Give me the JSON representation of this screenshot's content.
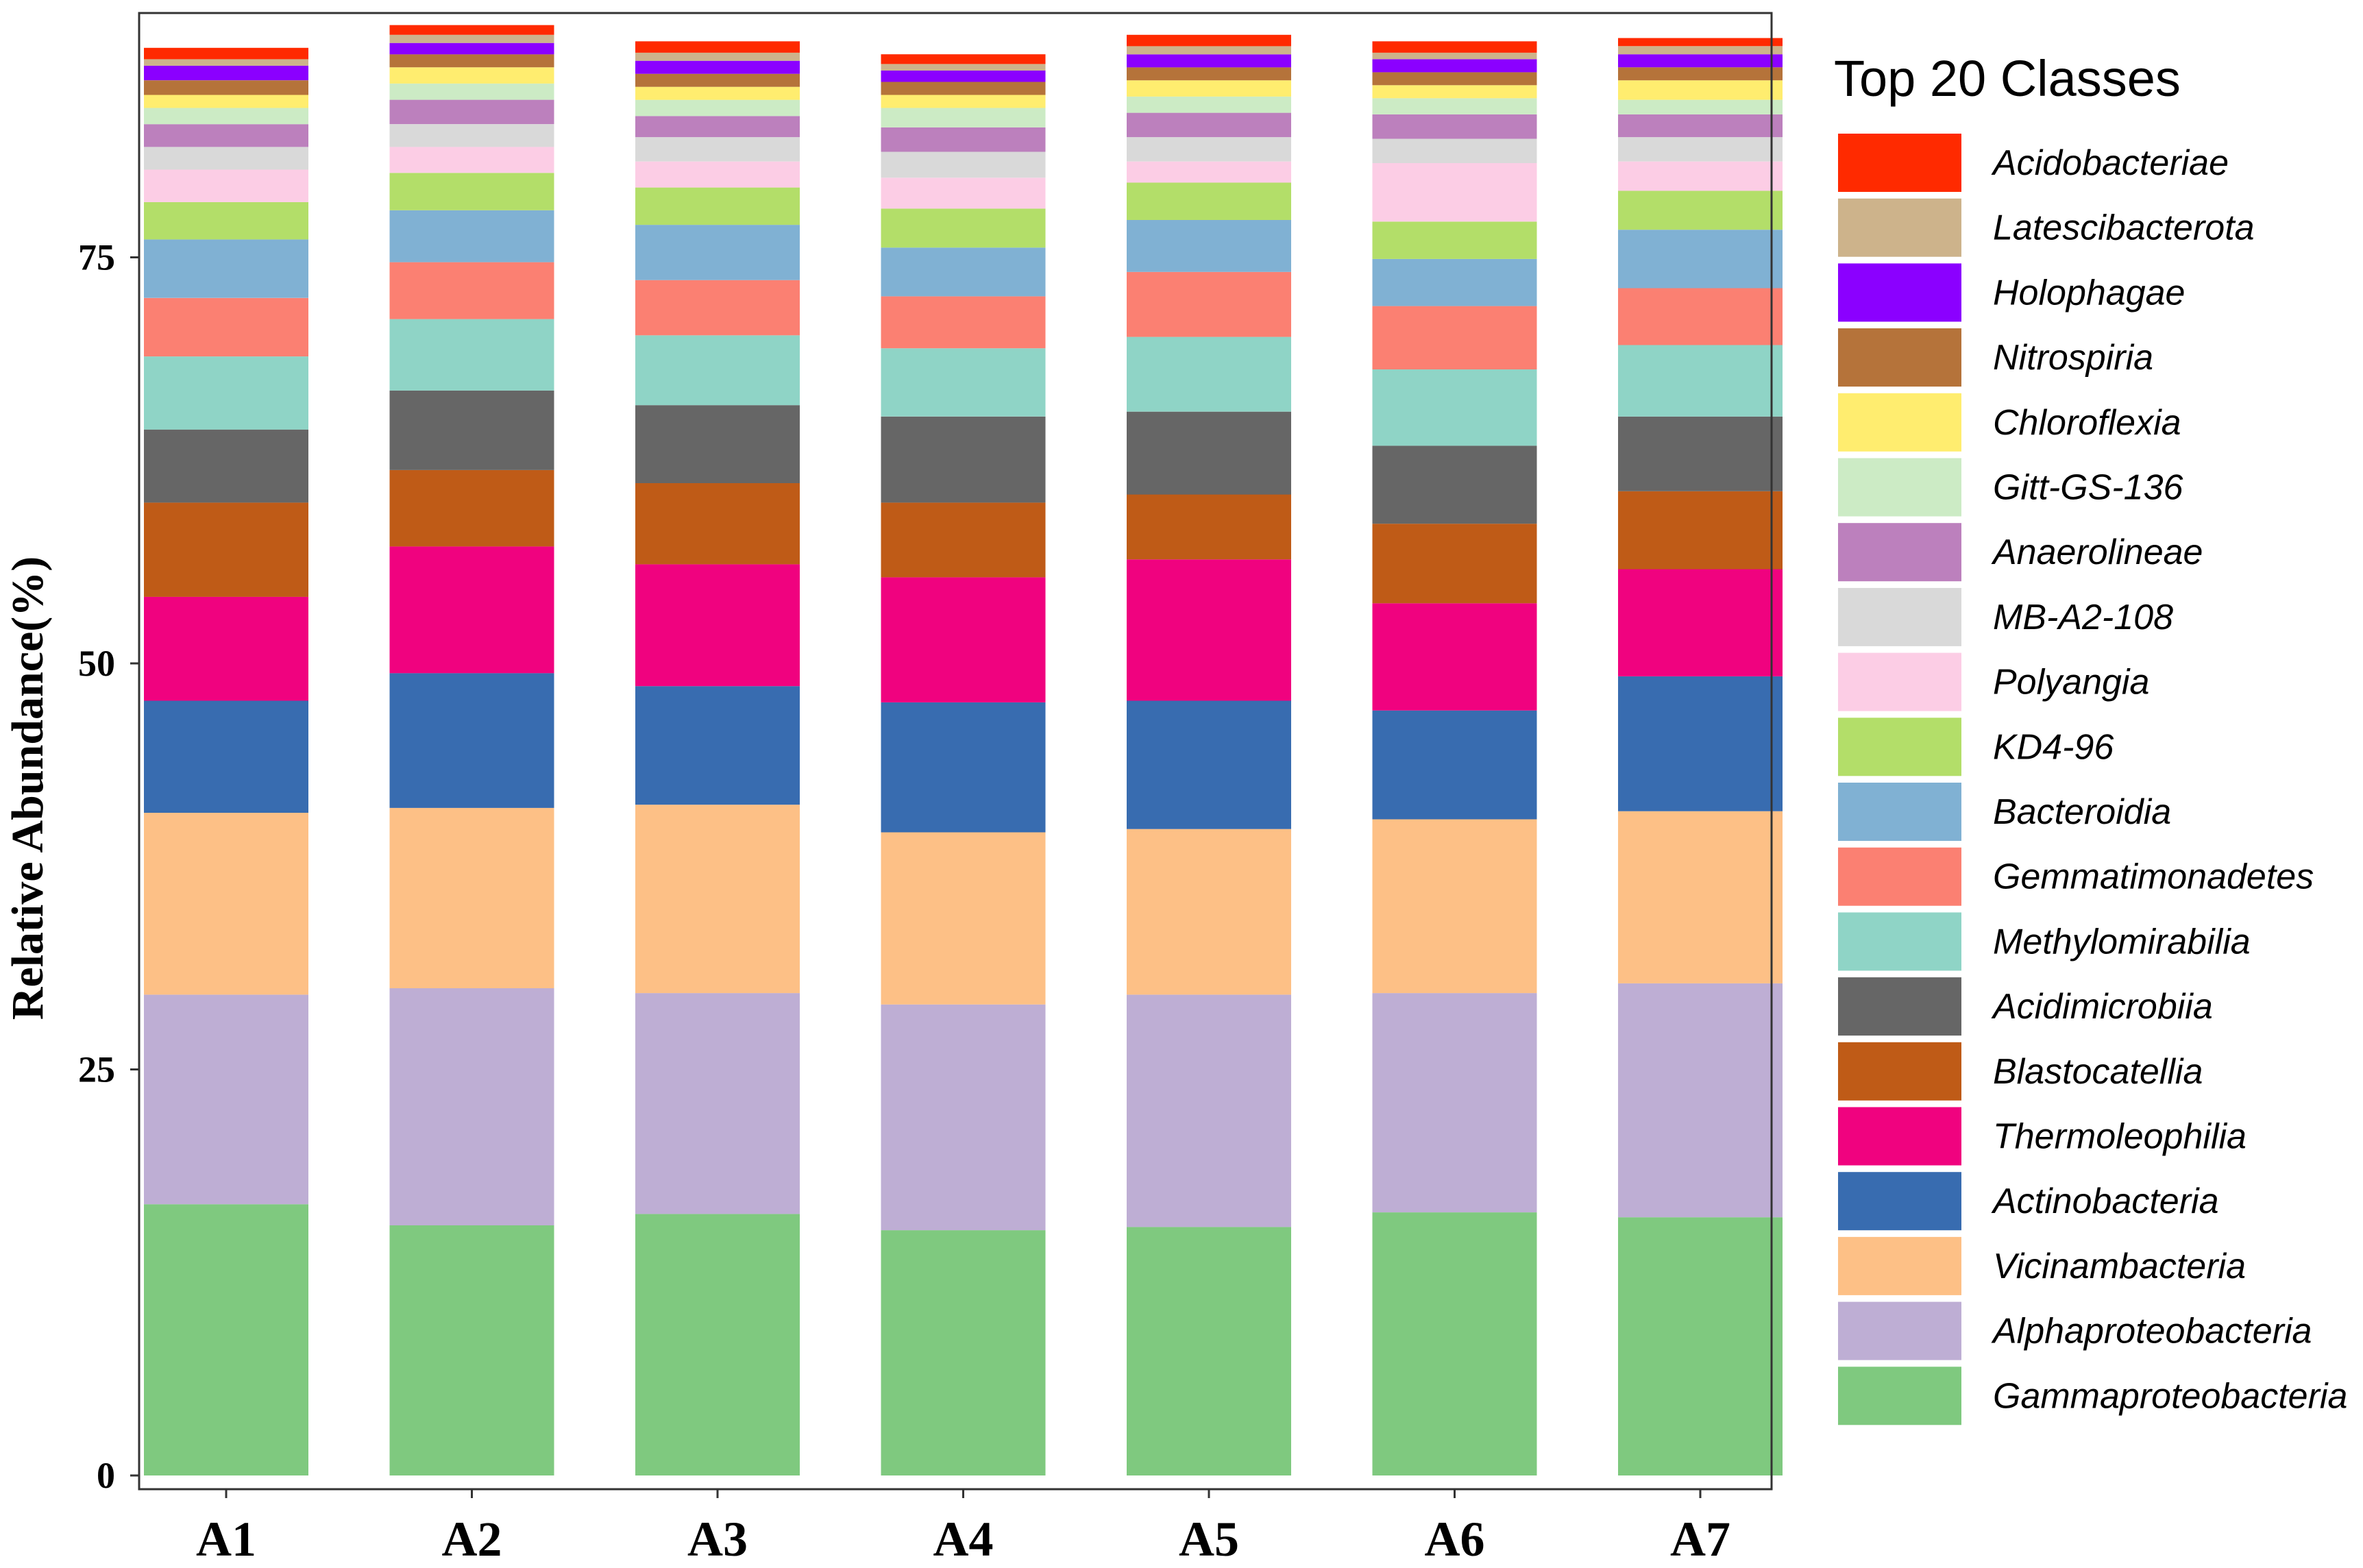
{
  "chart_data": {
    "type": "bar",
    "stacked": true,
    "title": "",
    "xlabel": "",
    "ylabel": "Relative Abundance(%)",
    "ylim": [
      0,
      90
    ],
    "y_ticks": [
      0,
      25,
      50,
      75
    ],
    "grid": false,
    "legend_title": "Top 20 Classes",
    "legend_position": "right",
    "categories": [
      "A1",
      "A2",
      "A3",
      "A4",
      "A5",
      "A6",
      "A7"
    ],
    "series": [
      {
        "name": "Gammaproteobacteria",
        "color": "#7fc97f",
        "values": [
          16.7,
          15.4,
          16.1,
          15.1,
          15.3,
          16.2,
          15.9
        ]
      },
      {
        "name": "Alphaproteobacteria",
        "color": "#beaed4",
        "values": [
          12.9,
          14.6,
          13.6,
          13.9,
          14.3,
          13.5,
          14.4
        ]
      },
      {
        "name": "Vicinambacteria",
        "color": "#fdc086",
        "values": [
          11.2,
          11.1,
          11.6,
          10.6,
          10.2,
          10.7,
          10.6
        ]
      },
      {
        "name": "Actinobacteria",
        "color": "#386cb0",
        "values": [
          6.9,
          8.3,
          7.3,
          8.0,
          7.9,
          6.7,
          8.3
        ]
      },
      {
        "name": "Thermoleophilia",
        "color": "#f0027f",
        "values": [
          6.4,
          7.8,
          7.5,
          7.7,
          8.7,
          6.6,
          6.6
        ]
      },
      {
        "name": "Blastocatellia",
        "color": "#bf5b17",
        "values": [
          5.8,
          4.7,
          5.0,
          4.6,
          4.0,
          4.9,
          4.8
        ]
      },
      {
        "name": "Acidimicrobiia",
        "color": "#666666",
        "values": [
          4.5,
          4.9,
          4.8,
          5.3,
          5.1,
          4.8,
          4.6
        ]
      },
      {
        "name": "Methylomirabilia",
        "color": "#8fd4c6",
        "values": [
          4.5,
          4.4,
          4.3,
          4.2,
          4.6,
          4.7,
          4.4
        ]
      },
      {
        "name": "Gemmatimonadetes",
        "color": "#fb8072",
        "values": [
          3.6,
          3.5,
          3.4,
          3.2,
          4.0,
          3.9,
          3.5
        ]
      },
      {
        "name": "Bacteroidia",
        "color": "#80b1d3",
        "values": [
          3.6,
          3.2,
          3.4,
          3.0,
          3.2,
          2.9,
          3.6
        ]
      },
      {
        "name": "KD4-96",
        "color": "#b3de69",
        "values": [
          2.3,
          2.3,
          2.3,
          2.4,
          2.3,
          2.3,
          2.4
        ]
      },
      {
        "name": "Polyangia",
        "color": "#fccde5",
        "values": [
          2.0,
          1.6,
          1.6,
          1.9,
          1.3,
          3.6,
          1.8
        ]
      },
      {
        "name": "MB-A2-108",
        "color": "#d9d9d9",
        "values": [
          1.4,
          1.4,
          1.5,
          1.6,
          1.5,
          1.5,
          1.5
        ]
      },
      {
        "name": "Anaerolineae",
        "color": "#bc80bd",
        "values": [
          1.4,
          1.5,
          1.3,
          1.5,
          1.5,
          1.5,
          1.4
        ]
      },
      {
        "name": "Gitt-GS-136",
        "color": "#ccebc5",
        "values": [
          1.0,
          1.0,
          1.0,
          1.2,
          1.0,
          1.0,
          0.9
        ]
      },
      {
        "name": "Chloroflexia",
        "color": "#ffed6f",
        "values": [
          0.8,
          1.0,
          0.8,
          0.8,
          1.0,
          0.8,
          1.2
        ]
      },
      {
        "name": "Nitrospiria",
        "color": "#b5733a",
        "values": [
          0.9,
          0.8,
          0.8,
          0.8,
          0.8,
          0.8,
          0.8
        ]
      },
      {
        "name": "Holophagae",
        "color": "#8b00ff",
        "values": [
          0.9,
          0.7,
          0.8,
          0.7,
          0.8,
          0.8,
          0.8
        ]
      },
      {
        "name": "Latescibacterota",
        "color": "#cdb38b",
        "values": [
          0.4,
          0.5,
          0.5,
          0.4,
          0.5,
          0.4,
          0.5
        ]
      },
      {
        "name": "Acidobacteriae",
        "color": "#ff2a00",
        "values": [
          0.7,
          0.6,
          0.7,
          0.6,
          0.7,
          0.7,
          0.5
        ]
      }
    ]
  }
}
